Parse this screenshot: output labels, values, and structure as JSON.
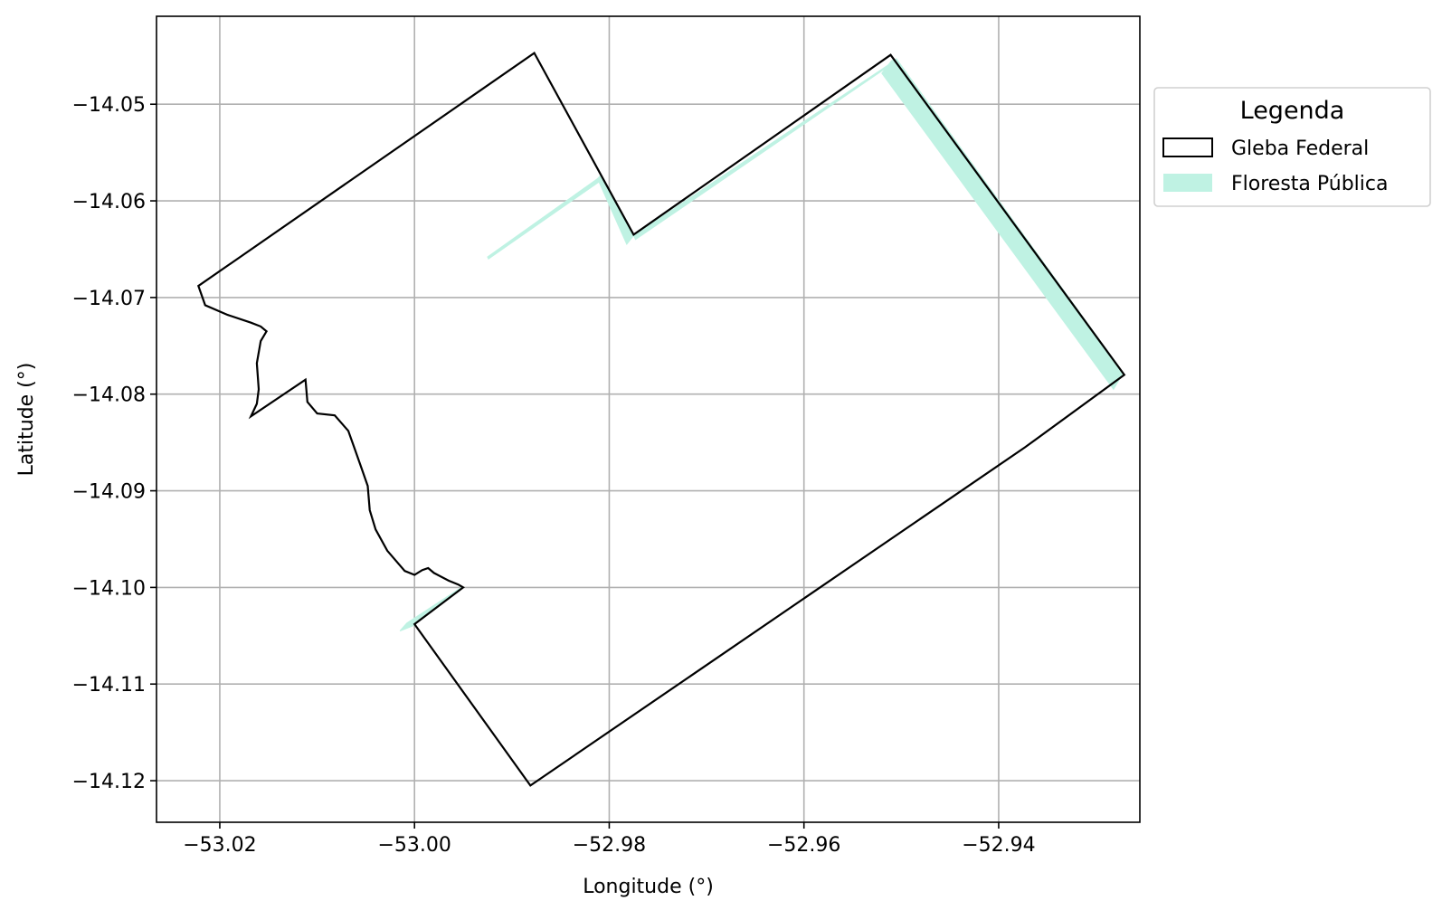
{
  "chart_data": {
    "type": "map",
    "xlabel": "Longitude (°)",
    "ylabel": "Latitude (°)",
    "xlim": [
      -53.0265,
      -52.9255
    ],
    "ylim": [
      -14.1243,
      -14.0409
    ],
    "xticks": [
      -53.02,
      -53.0,
      -52.98,
      -52.96,
      -52.94
    ],
    "xtick_labels": [
      "−53.02",
      "−53.00",
      "−52.98",
      "−52.96",
      "−52.94"
    ],
    "yticks": [
      -14.05,
      -14.06,
      -14.07,
      -14.08,
      -14.09,
      -14.1,
      -14.11,
      -14.12
    ],
    "ytick_labels": [
      "−14.05",
      "−14.06",
      "−14.07",
      "−14.08",
      "−14.09",
      "−14.10",
      "−14.11",
      "−14.12"
    ],
    "grid": true,
    "legend": {
      "title": "Legenda",
      "placement": "outside-right-top",
      "entries": [
        {
          "label": "Gleba Federal",
          "style": "outline",
          "color": "#000000"
        },
        {
          "label": "Floresta Pública",
          "style": "fill",
          "color": "#bff2e3"
        }
      ]
    },
    "layers": [
      {
        "name": "Gleba Federal",
        "style": "outline",
        "stroke": "#000000",
        "polygon": [
          [
            -52.9877,
            -14.0447
          ],
          [
            -52.9775,
            -14.0635
          ],
          [
            -52.9511,
            -14.0449
          ],
          [
            -52.9271,
            -14.078
          ],
          [
            -52.9373,
            -14.0855
          ],
          [
            -52.9881,
            -14.1205
          ],
          [
            -53.0,
            -14.1038
          ],
          [
            -52.995,
            -14.1
          ],
          [
            -52.9955,
            -14.0997
          ],
          [
            -52.9965,
            -14.0993
          ],
          [
            -52.998,
            -14.0985
          ],
          [
            -52.9986,
            -14.098
          ],
          [
            -52.9992,
            -14.0982
          ],
          [
            -53.0,
            -14.0987
          ],
          [
            -53.001,
            -14.0983
          ],
          [
            -53.0028,
            -14.0962
          ],
          [
            -53.004,
            -14.094
          ],
          [
            -53.0046,
            -14.092
          ],
          [
            -53.0048,
            -14.0895
          ],
          [
            -53.0055,
            -14.0875
          ],
          [
            -53.0062,
            -14.0855
          ],
          [
            -53.0068,
            -14.0838
          ],
          [
            -53.0082,
            -14.0822
          ],
          [
            -53.01,
            -14.082
          ],
          [
            -53.011,
            -14.0808
          ],
          [
            -53.0112,
            -14.0785
          ],
          [
            -53.0168,
            -14.0823
          ],
          [
            -53.0162,
            -14.081
          ],
          [
            -53.016,
            -14.0795
          ],
          [
            -53.0162,
            -14.0768
          ],
          [
            -53.0158,
            -14.0745
          ],
          [
            -53.0152,
            -14.0735
          ],
          [
            -53.0158,
            -14.073
          ],
          [
            -53.0168,
            -14.0726
          ],
          [
            -53.0192,
            -14.0718
          ],
          [
            -53.0215,
            -14.0708
          ],
          [
            -53.0222,
            -14.0688
          ]
        ]
      },
      {
        "name": "Floresta Pública",
        "style": "fill",
        "fill": "#bff2e3",
        "polygons": [
          [
            [
              -52.951,
              -14.0455
            ],
            [
              -52.9505,
              -14.0453
            ],
            [
              -52.9272,
              -14.0778
            ],
            [
              -52.9282,
              -14.0795
            ],
            [
              -52.952,
              -14.0468
            ],
            [
              -52.951,
              -14.0455
            ]
          ],
          [
            [
              -52.9812,
              -14.0577
            ],
            [
              -52.9808,
              -14.0573
            ],
            [
              -52.9775,
              -14.0636
            ],
            [
              -52.9782,
              -14.0645
            ],
            [
              -52.9812,
              -14.0577
            ]
          ],
          [
            [
              -52.9775,
              -14.0636
            ],
            [
              -52.951,
              -14.0457
            ],
            [
              -52.9512,
              -14.046
            ],
            [
              -52.9773,
              -14.064
            ],
            [
              -52.9775,
              -14.0636
            ]
          ],
          [
            [
              -52.9812,
              -14.0577
            ],
            [
              -52.9925,
              -14.0658
            ],
            [
              -52.9924,
              -14.066
            ],
            [
              -52.981,
              -14.058
            ],
            [
              -52.9812,
              -14.0577
            ]
          ],
          [
            [
              -52.9952,
              -14.1
            ],
            [
              -53.0008,
              -14.1037
            ],
            [
              -53.0015,
              -14.1045
            ],
            [
              -53.0002,
              -14.104
            ],
            [
              -52.9955,
              -14.1003
            ],
            [
              -52.9952,
              -14.1
            ]
          ]
        ]
      }
    ]
  }
}
